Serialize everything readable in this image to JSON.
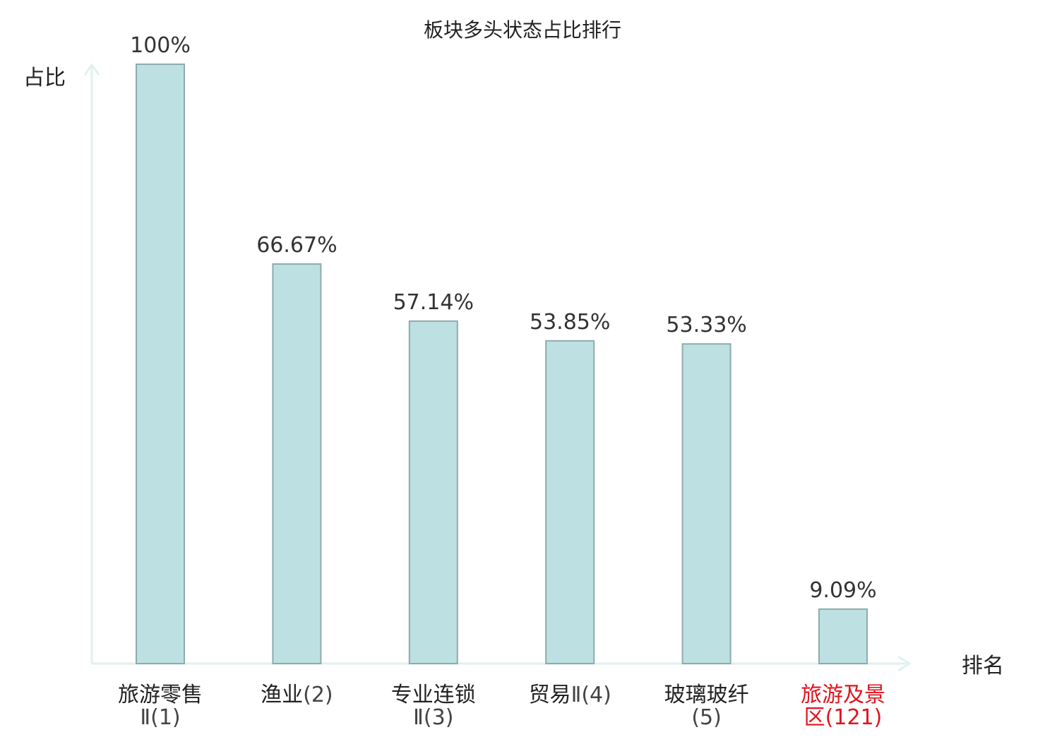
{
  "chart_data": {
    "type": "bar",
    "title": "板块多头状态占比排行",
    "ylabel": "占比",
    "xlabel": "排名",
    "ylim": [
      0,
      100
    ],
    "grid": false,
    "categories": [
      {
        "name": "旅游零售",
        "suffix": "Ⅱ(1)",
        "name_line2": "",
        "highlight": false
      },
      {
        "name": "渔业",
        "suffix": "(2)",
        "name_line2": "",
        "highlight": false
      },
      {
        "name": "专业连锁",
        "suffix": "Ⅱ(3)",
        "name_line2": "",
        "highlight": false
      },
      {
        "name": "贸易",
        "suffix": "Ⅱ(4)",
        "name_line2": "",
        "highlight": false
      },
      {
        "name": "玻璃玻纤",
        "suffix": "(5)",
        "name_line2": "",
        "highlight": false
      },
      {
        "name": "旅游及景",
        "suffix": "(121)",
        "name_line2": "区",
        "highlight": true
      }
    ],
    "values": [
      100,
      66.67,
      57.14,
      53.85,
      53.33,
      9.09
    ],
    "value_labels": [
      "100%",
      "66.67%",
      "57.14%",
      "53.85%",
      "53.33%",
      "9.09%"
    ],
    "colors": {
      "bar_fill": "#bde0e3",
      "bar_stroke": "#8fabab",
      "axis": "#e0f2ef",
      "text": "#222222",
      "value_text": "#333333",
      "highlight": "#e0141e",
      "suffix": "#444444"
    }
  }
}
